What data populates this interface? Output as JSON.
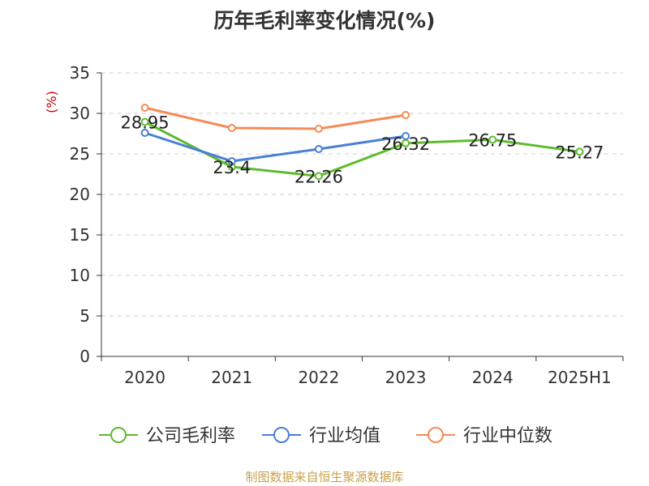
{
  "chart_data": {
    "type": "line",
    "title": "历年毛利率变化情况(%)",
    "ylabel": "(%)",
    "categories": [
      "2020",
      "2021",
      "2022",
      "2023",
      "2024",
      "2025H1"
    ],
    "ylim": [
      0,
      35
    ],
    "yticks": [
      0,
      5,
      10,
      15,
      20,
      25,
      30,
      35
    ],
    "grid": true,
    "legend_position": "bottom",
    "series": [
      {
        "name": "公司毛利率",
        "color": "#5dbb2f",
        "values": [
          28.95,
          23.4,
          22.26,
          26.32,
          26.75,
          25.27
        ],
        "labels": [
          "28.95",
          "23.4",
          "22.26",
          "26.32",
          "26.75",
          "25.27"
        ]
      },
      {
        "name": "行业均值",
        "color": "#4a7fd6",
        "values": [
          27.6,
          24.1,
          25.6,
          27.2,
          null,
          null
        ]
      },
      {
        "name": "行业中位数",
        "color": "#f58b57",
        "values": [
          30.7,
          28.2,
          28.1,
          29.8,
          null,
          null
        ]
      }
    ]
  },
  "source": "制图数据来自恒生聚源数据库",
  "colors": {
    "grid": "#cccccc",
    "axis": "#333333",
    "ylabel": "#cc0000",
    "source": "#c8a24a"
  }
}
